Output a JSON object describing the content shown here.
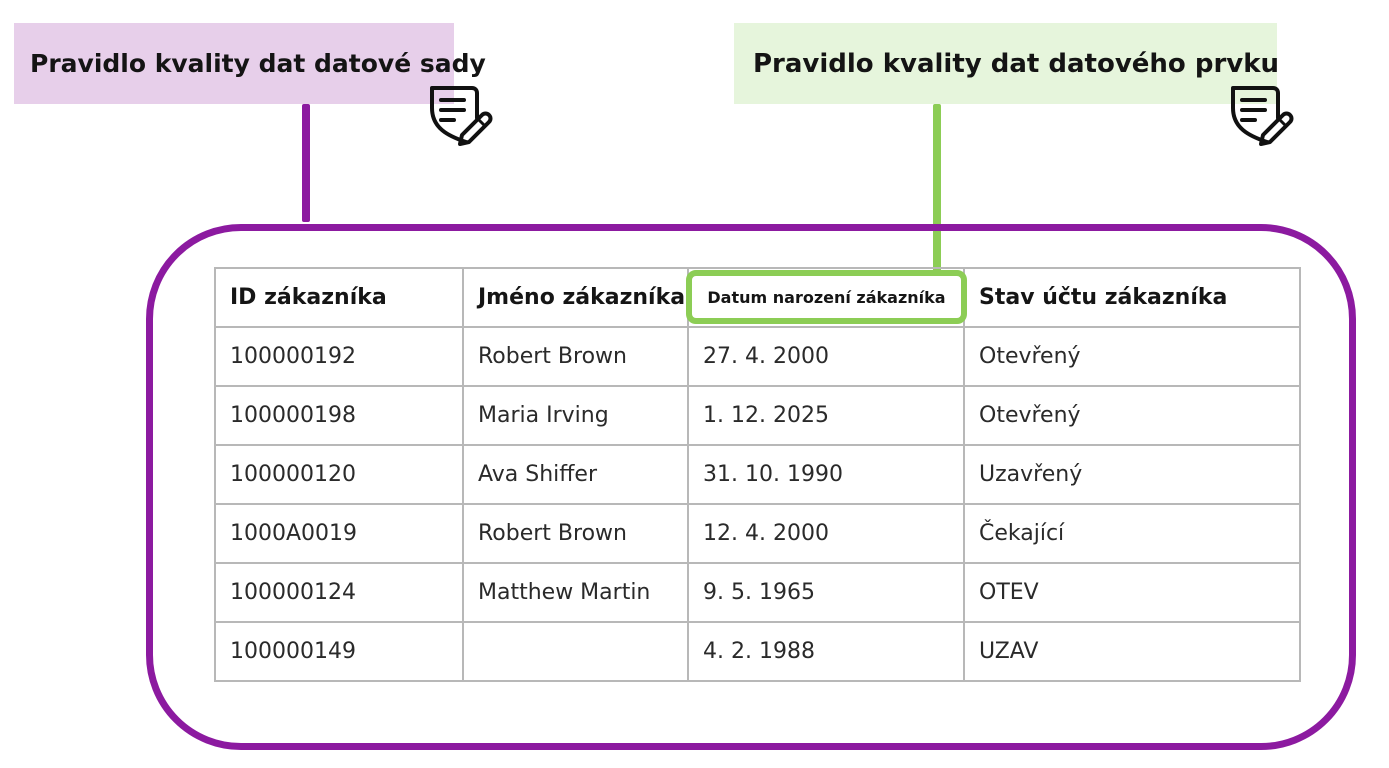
{
  "labels": {
    "dataset_rule": "Pravidlo kvality dat datové sady",
    "element_rule": "Pravidlo kvality dat datového prvku"
  },
  "icons": {
    "rule_icon": "document-edit-shield-icon"
  },
  "colors": {
    "dataset_accent": "#8c1aa0",
    "dataset_label_bg": "#e7cfea",
    "element_accent": "#8ccd55",
    "element_label_bg": "#e6f5dc",
    "grid": "#b8b8b8"
  },
  "table": {
    "headers": [
      "ID zákazníka",
      "Jméno zákazníka",
      "Datum narození zákazníka",
      "Stav účtu zákazníka"
    ],
    "rows": [
      [
        "100000192",
        "Robert Brown",
        "27. 4. 2000",
        "Otevřený"
      ],
      [
        "100000198",
        "Maria Irving",
        "1. 12. 2025",
        "Otevřený"
      ],
      [
        "100000120",
        "Ava Shiffer",
        "31. 10. 1990",
        "Uzavřený"
      ],
      [
        "1000A0019",
        "Robert Brown",
        "12. 4. 2000",
        "Čekající"
      ],
      [
        "100000124",
        "Matthew Martin",
        "9. 5. 1965",
        "OTEV"
      ],
      [
        "100000149",
        "",
        "4. 2. 1988",
        "UZAV"
      ]
    ]
  }
}
